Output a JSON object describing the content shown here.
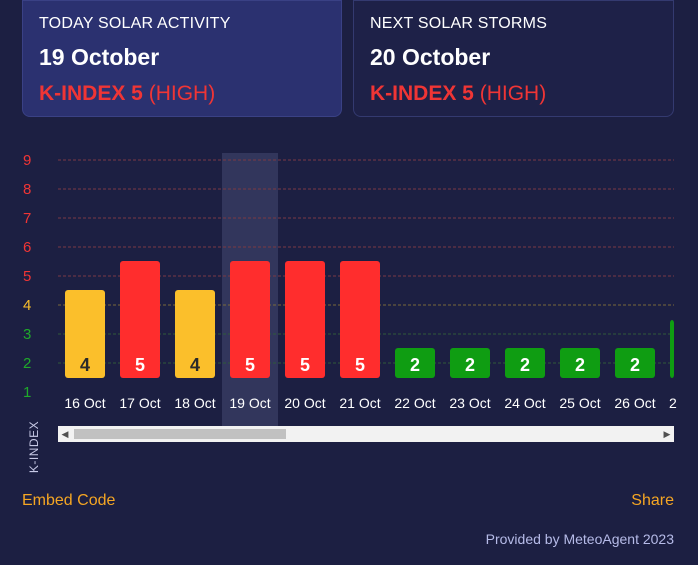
{
  "today": {
    "label": "TODAY SOLAR ACTIVITY",
    "date": "19 October",
    "kindex_label": "K-INDEX 5",
    "level": "(HIGH)"
  },
  "next": {
    "label": "NEXT SOLAR STORMS",
    "date": "20 October",
    "kindex_label": "K-INDEX 5",
    "level": "(HIGH)"
  },
  "colors": {
    "low": "#0f9d12",
    "moderate": "#fbbf2b",
    "high": "#ff2d2d",
    "background": "#1c1f42"
  },
  "chart_data": {
    "type": "bar",
    "ylabel": "K-INDEX",
    "ylim": [
      1,
      9
    ],
    "yticks": [
      "1",
      "2",
      "3",
      "4",
      "5",
      "6",
      "7",
      "8",
      "9"
    ],
    "categories": [
      "16 Oct",
      "17 Oct",
      "18 Oct",
      "19 Oct",
      "20 Oct",
      "21 Oct",
      "22 Oct",
      "23 Oct",
      "24 Oct",
      "25 Oct",
      "26 Oct",
      "2"
    ],
    "values": [
      4,
      5,
      4,
      5,
      5,
      5,
      2,
      2,
      2,
      2,
      2,
      3
    ],
    "highlighted": "19 Oct",
    "grid": true
  },
  "footer": {
    "embed": "Embed Code",
    "share": "Share",
    "provided": "Provided by MeteoAgent 2023"
  }
}
